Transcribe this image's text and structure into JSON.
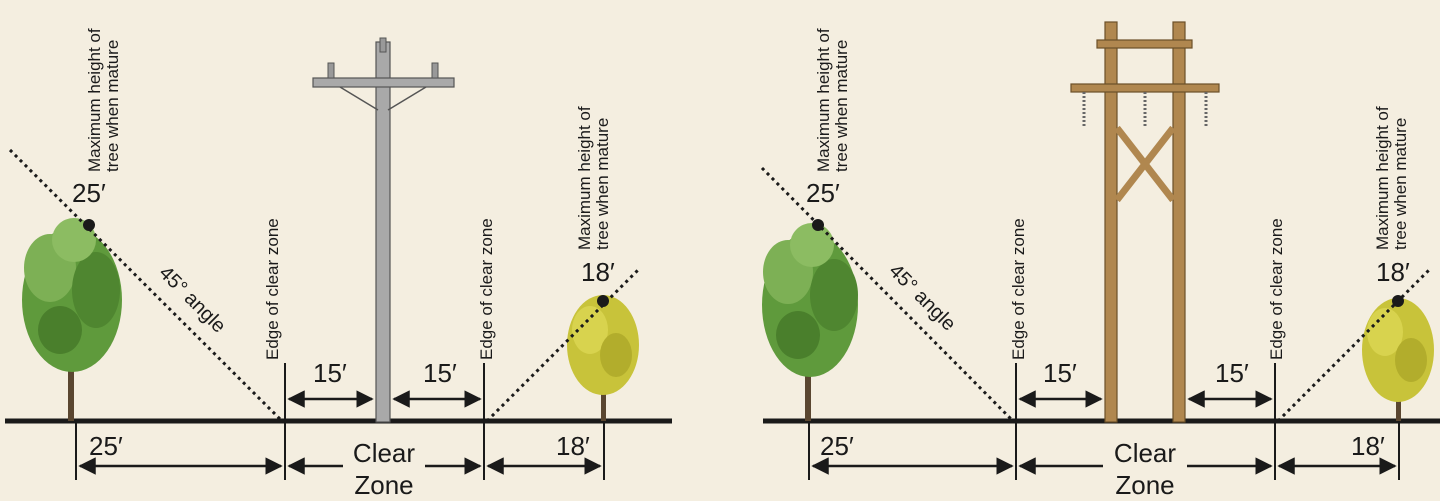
{
  "colors": {
    "background": "#f4eee0",
    "ink": "#1a1a1a",
    "steel_pole": "#a9a9a9",
    "wood_pole": "#b0874f",
    "tree_green": "#5f9a3c",
    "tree_yellow": "#c8c33a"
  },
  "labels": {
    "max_height_line1": "Maximum height of",
    "max_height_line2": "tree when mature",
    "edge_of_clear_zone": "Edge of clear zone",
    "angle": "45° angle",
    "clear": "Clear",
    "zone": "Zone"
  },
  "panels": [
    {
      "pole_type": "single-pole",
      "tree_left_height": "25′",
      "tree_right_height": "18′",
      "clear_left": "15′",
      "clear_right": "15′",
      "ground_left": "25′",
      "ground_right": "18′"
    },
    {
      "pole_type": "h-frame",
      "tree_left_height": "25′",
      "tree_right_height": "18′",
      "clear_left": "15′",
      "clear_right": "15′",
      "ground_left": "25′",
      "ground_right": "18′"
    }
  ]
}
